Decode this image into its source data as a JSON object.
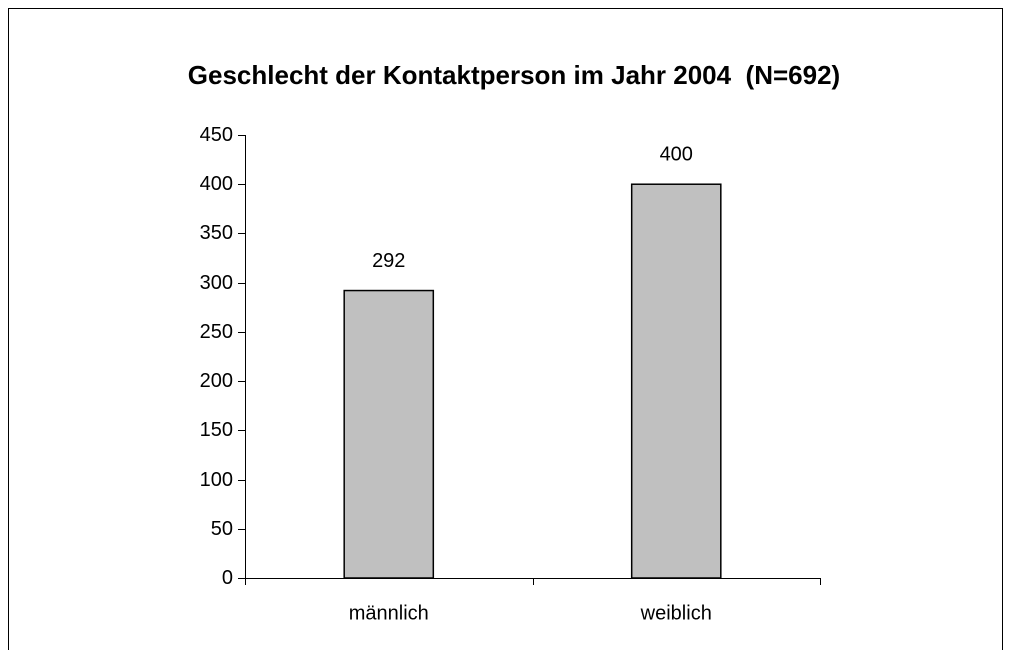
{
  "chart_data": {
    "type": "bar",
    "title": "Geschlecht der Kontaktperson im Jahr 2004  (N=692)",
    "categories": [
      "männlich",
      "weiblich"
    ],
    "values": [
      292,
      400
    ],
    "color": "#c0c0c0",
    "ylim": [
      0,
      450
    ],
    "yticks": [
      0,
      50,
      100,
      150,
      200,
      250,
      300,
      350,
      400,
      450
    ],
    "grid": false
  }
}
